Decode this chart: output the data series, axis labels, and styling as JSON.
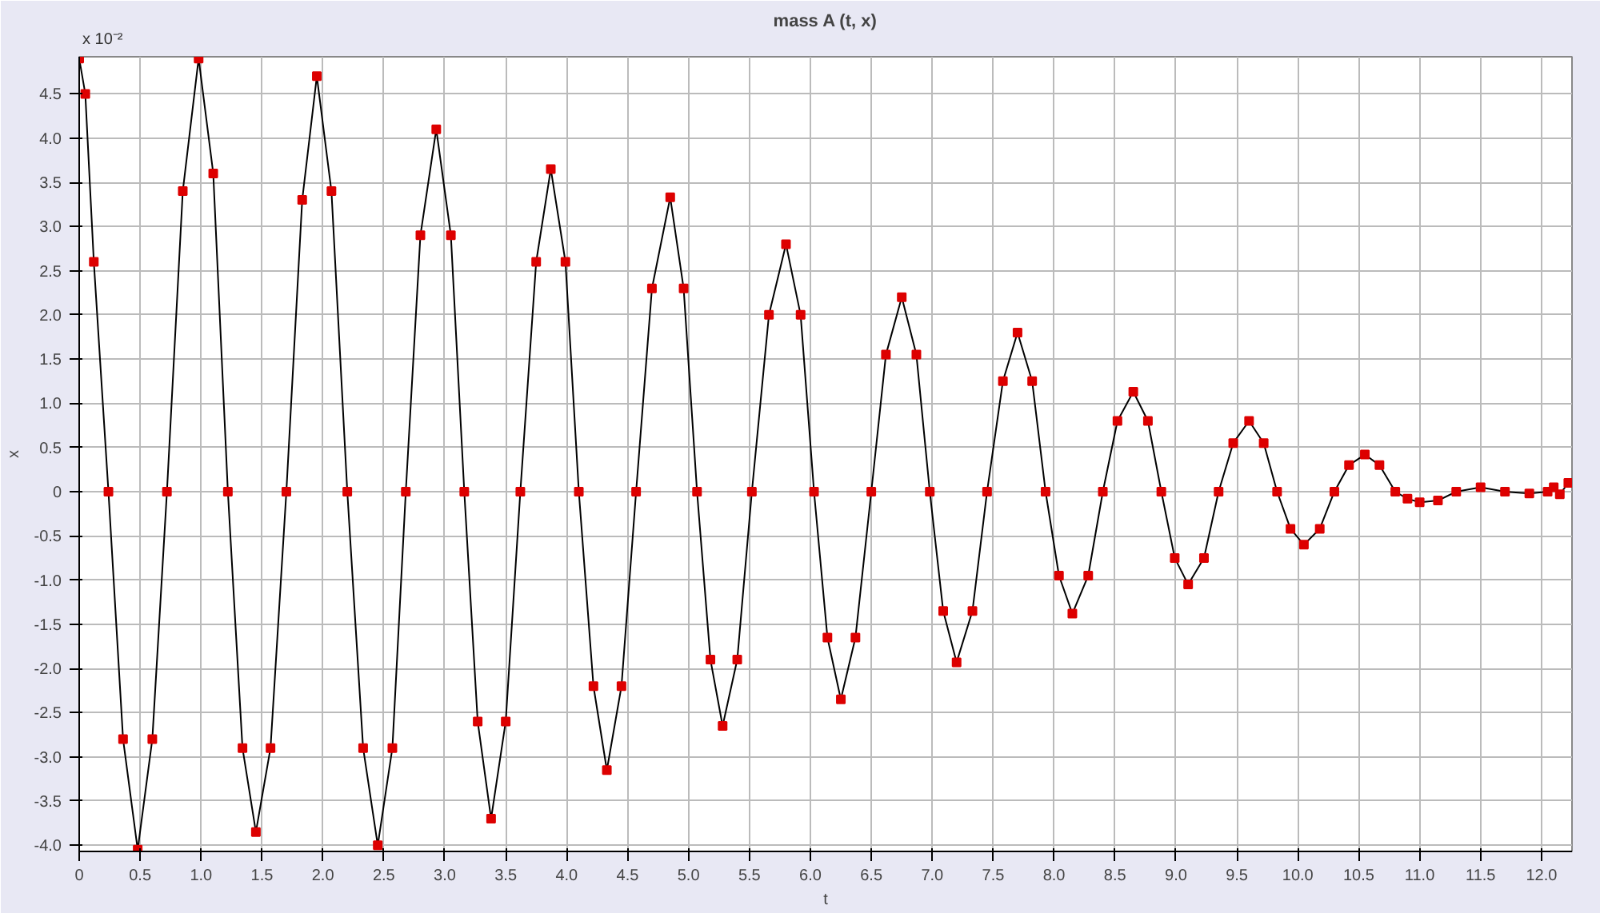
{
  "chart_data": {
    "type": "line",
    "title": "mass A (t, x)",
    "xlabel": "t",
    "ylabel": "x",
    "annotations": [
      "x 10⁻²"
    ],
    "marker": "square",
    "grid": true,
    "line_style": "solid",
    "xlim": [
      0,
      12.25
    ],
    "ylim": [
      -4.07,
      4.92
    ],
    "xticks": [
      0,
      0.5,
      {
        "value": 1,
        "label": "1.0"
      },
      1.5,
      {
        "value": 2,
        "label": "2.0"
      },
      2.5,
      {
        "value": 3,
        "label": "3.0"
      },
      3.5,
      {
        "value": 4,
        "label": "4.0"
      },
      4.5,
      {
        "value": 5,
        "label": "5.0"
      },
      5.5,
      {
        "value": 6,
        "label": "6.0"
      },
      6.5,
      {
        "value": 7,
        "label": "7.0"
      },
      7.5,
      {
        "value": 8,
        "label": "8.0"
      },
      8.5,
      {
        "value": 9,
        "label": "9.0"
      },
      9.5,
      {
        "value": 10,
        "label": "10.0"
      },
      10.5,
      {
        "value": 11,
        "label": "11.0"
      },
      11.5,
      {
        "value": 12,
        "label": "12.0"
      }
    ],
    "yticks": [
      {
        "value": -4,
        "label": "-4.0"
      },
      -3.5,
      {
        "value": -3,
        "label": "-3.0"
      },
      -2.5,
      {
        "value": -2,
        "label": "-2.0"
      },
      -1.5,
      {
        "value": -1,
        "label": "-1.0"
      },
      -0.5,
      0,
      0.5,
      {
        "value": 1,
        "label": "1.0"
      },
      1.5,
      {
        "value": 2,
        "label": "2.0"
      },
      2.5,
      {
        "value": 3,
        "label": "3.0"
      },
      3.5,
      {
        "value": 4,
        "label": "4.0"
      },
      4.5
    ],
    "series": [
      {
        "color": "#dd0000",
        "x": [
          0,
          0.05,
          0.12,
          0.24,
          0.36,
          0.48,
          0.6,
          0.72,
          0.85,
          0.98,
          1.1,
          1.22,
          1.34,
          1.45,
          1.57,
          1.7,
          1.83,
          1.95,
          2.07,
          2.2,
          2.33,
          2.45,
          2.57,
          2.68,
          2.8,
          2.93,
          3.05,
          3.16,
          3.27,
          3.38,
          3.5,
          3.62,
          3.75,
          3.87,
          3.99,
          4.1,
          4.22,
          4.33,
          4.45,
          4.57,
          4.7,
          4.85,
          4.96,
          5.07,
          5.18,
          5.28,
          5.4,
          5.52,
          5.66,
          5.8,
          5.92,
          6.03,
          6.14,
          6.25,
          6.37,
          6.5,
          6.62,
          6.75,
          6.87,
          6.98,
          7.09,
          7.2,
          7.33,
          7.45,
          7.58,
          7.7,
          7.82,
          7.93,
          8.04,
          8.15,
          8.28,
          8.4,
          8.52,
          8.65,
          8.77,
          8.88,
          8.99,
          9.1,
          9.23,
          9.35,
          9.47,
          9.6,
          9.72,
          9.83,
          9.94,
          10.05,
          10.18,
          10.3,
          10.42,
          10.55,
          10.67,
          10.8,
          10.9,
          11.0,
          11.15,
          11.3,
          11.5,
          11.7,
          11.9,
          12.05,
          12.1,
          12.15,
          12.22
        ],
        "values": [
          4.9,
          4.5,
          2.6,
          0.0,
          -2.8,
          -4.05,
          -2.8,
          0.0,
          3.4,
          4.9,
          3.6,
          0.0,
          -2.9,
          -3.85,
          -2.9,
          0.0,
          3.3,
          4.7,
          3.4,
          0.0,
          -2.9,
          -4.0,
          -2.9,
          0.0,
          2.9,
          4.1,
          2.9,
          0.0,
          -2.6,
          -3.7,
          -2.6,
          0.0,
          2.6,
          3.65,
          2.6,
          0.0,
          -2.2,
          -3.15,
          -2.2,
          0.0,
          2.3,
          3.33,
          2.3,
          0.0,
          -1.9,
          -2.65,
          -1.9,
          0.0,
          2.0,
          2.8,
          2.0,
          0.0,
          -1.65,
          -2.35,
          -1.65,
          0.0,
          1.55,
          2.2,
          1.55,
          0.0,
          -1.35,
          -1.93,
          -1.35,
          0.0,
          1.25,
          1.8,
          1.25,
          0.0,
          -0.95,
          -1.38,
          -0.95,
          0.0,
          0.8,
          1.13,
          0.8,
          0.0,
          -0.75,
          -1.05,
          -0.75,
          0.0,
          0.55,
          0.8,
          0.55,
          0.0,
          -0.42,
          -0.6,
          -0.42,
          0.0,
          0.3,
          0.42,
          0.3,
          0.0,
          -0.08,
          -0.12,
          -0.1,
          0.0,
          0.05,
          0.0,
          -0.02,
          0.0,
          0.05,
          -0.03,
          0.1
        ]
      }
    ]
  }
}
